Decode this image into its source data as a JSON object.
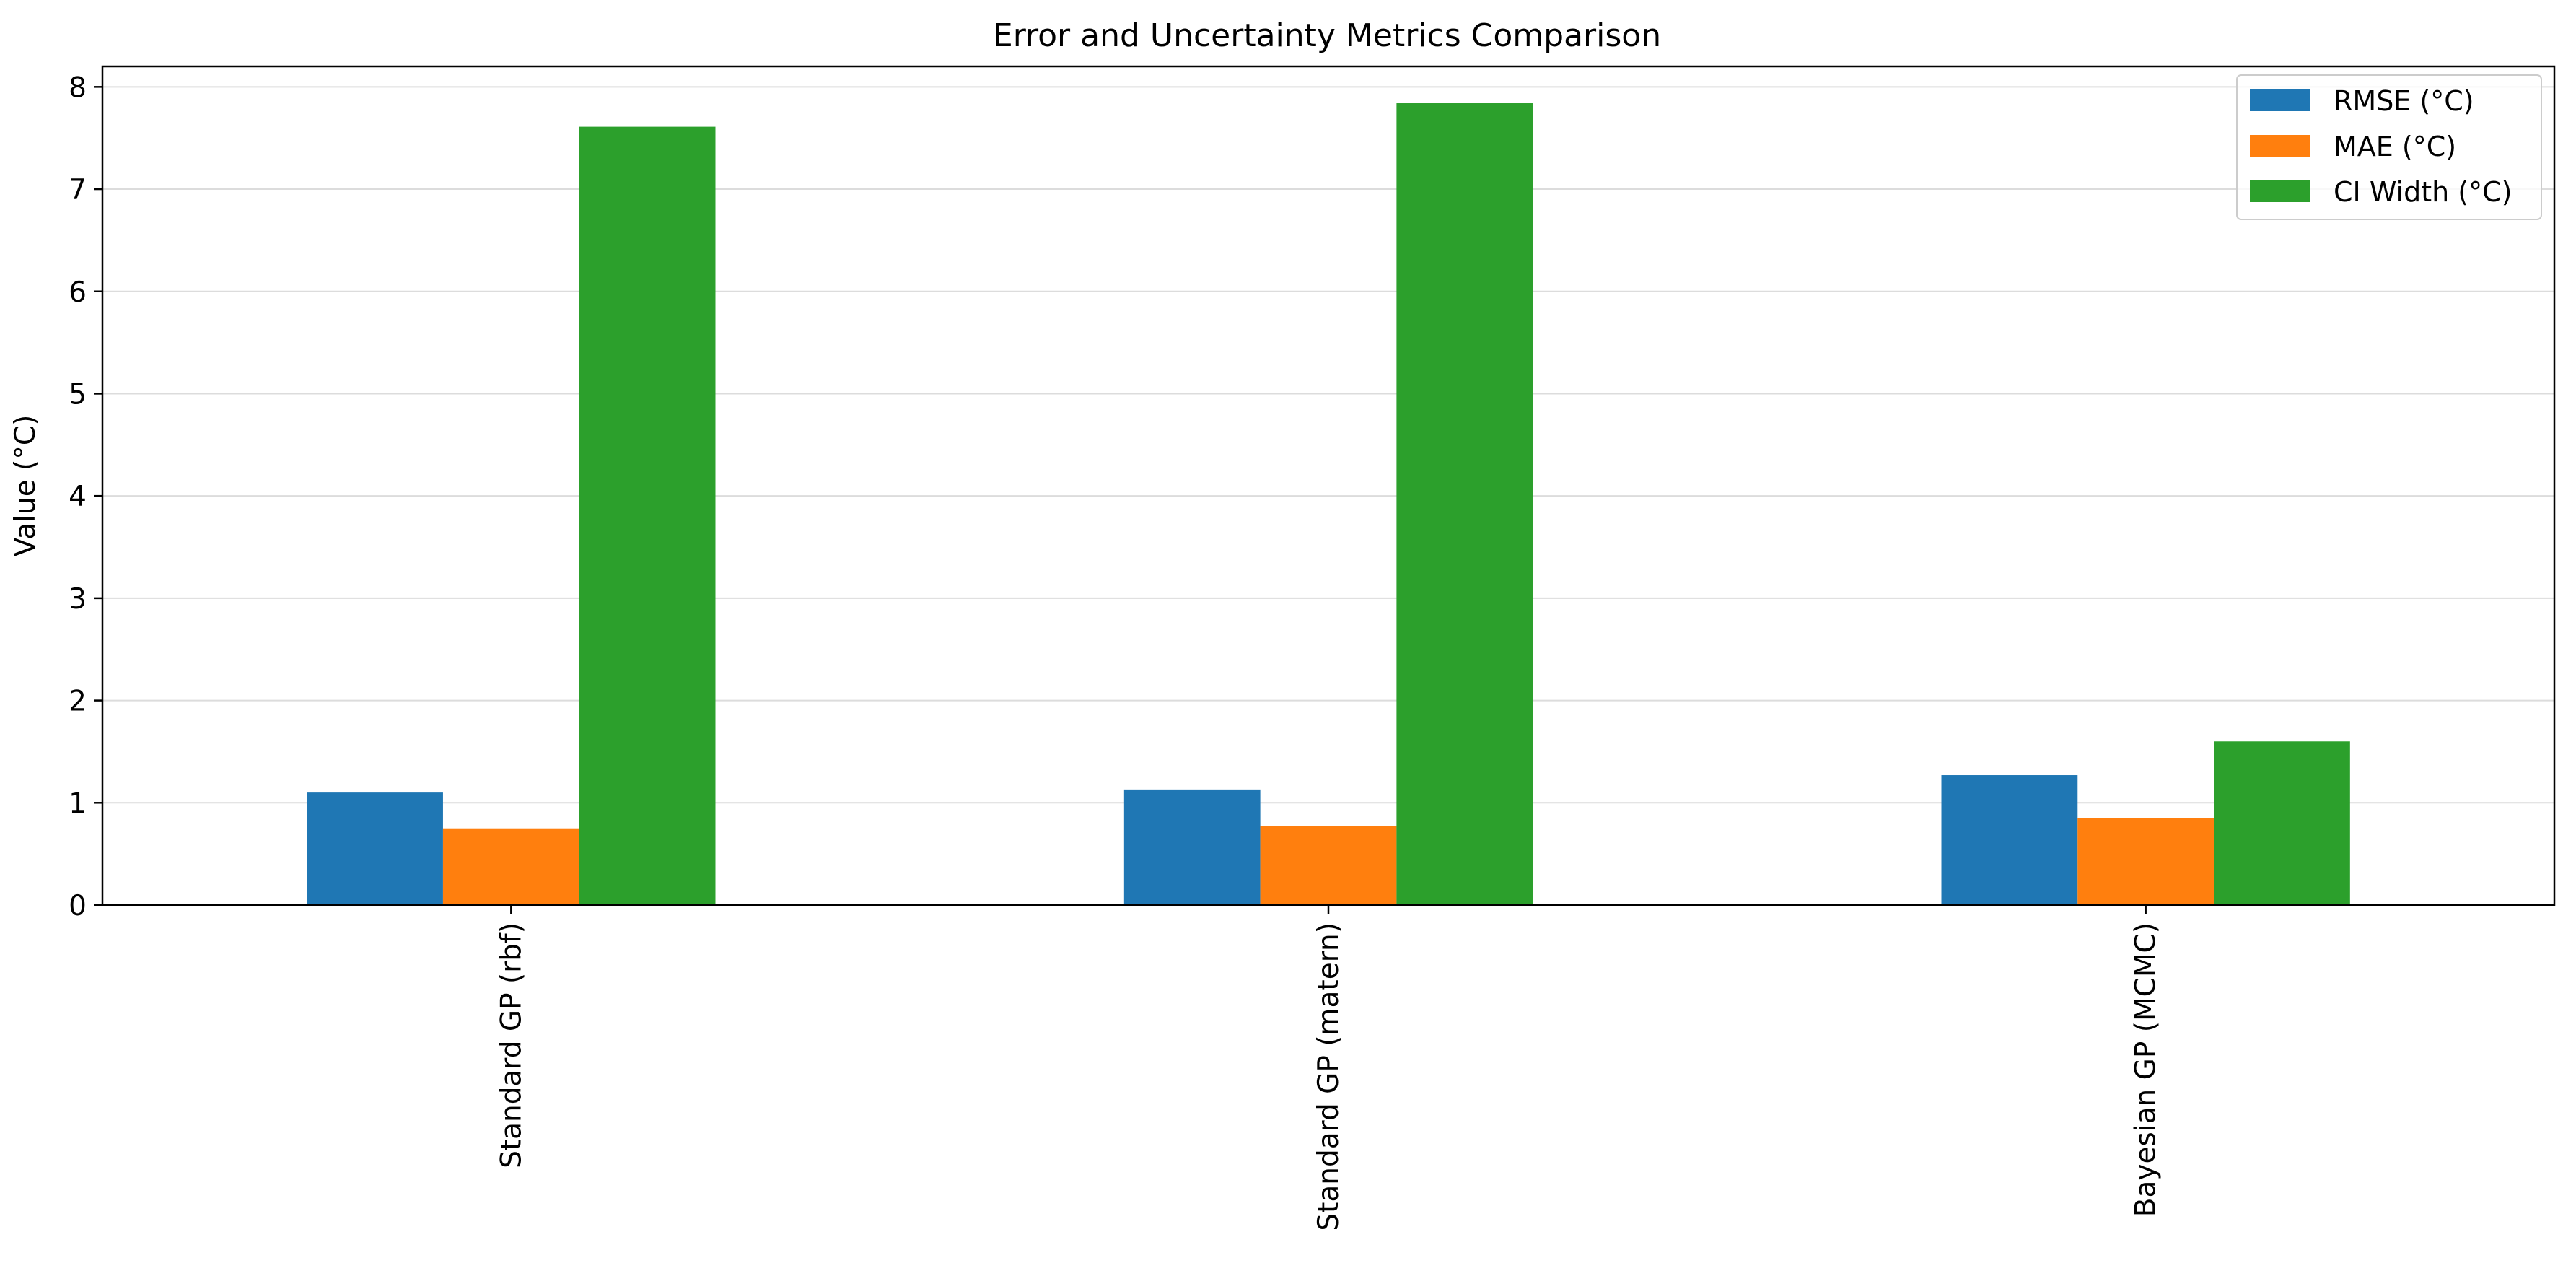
{
  "chart_data": {
    "type": "bar",
    "title": "Error and Uncertainty Metrics Comparison",
    "xlabel": "",
    "ylabel": "Value (°C)",
    "categories": [
      "Standard GP (rbf)",
      "Standard GP (matern)",
      "Bayesian GP (MCMC)"
    ],
    "series": [
      {
        "name": "RMSE (°C)",
        "color": "#1f77b4",
        "values": [
          1.1,
          1.13,
          1.27
        ]
      },
      {
        "name": "MAE (°C)",
        "color": "#ff7f0e",
        "values": [
          0.75,
          0.77,
          0.85
        ]
      },
      {
        "name": "CI Width (°C)",
        "color": "#2ca02c",
        "values": [
          7.61,
          7.84,
          1.6
        ]
      }
    ],
    "ylim": [
      0,
      8.2
    ],
    "yticks": [
      0,
      1,
      2,
      3,
      4,
      5,
      6,
      7,
      8
    ],
    "grid": "y",
    "legend_position": "top-right",
    "x_tick_rotation": "vertical"
  }
}
